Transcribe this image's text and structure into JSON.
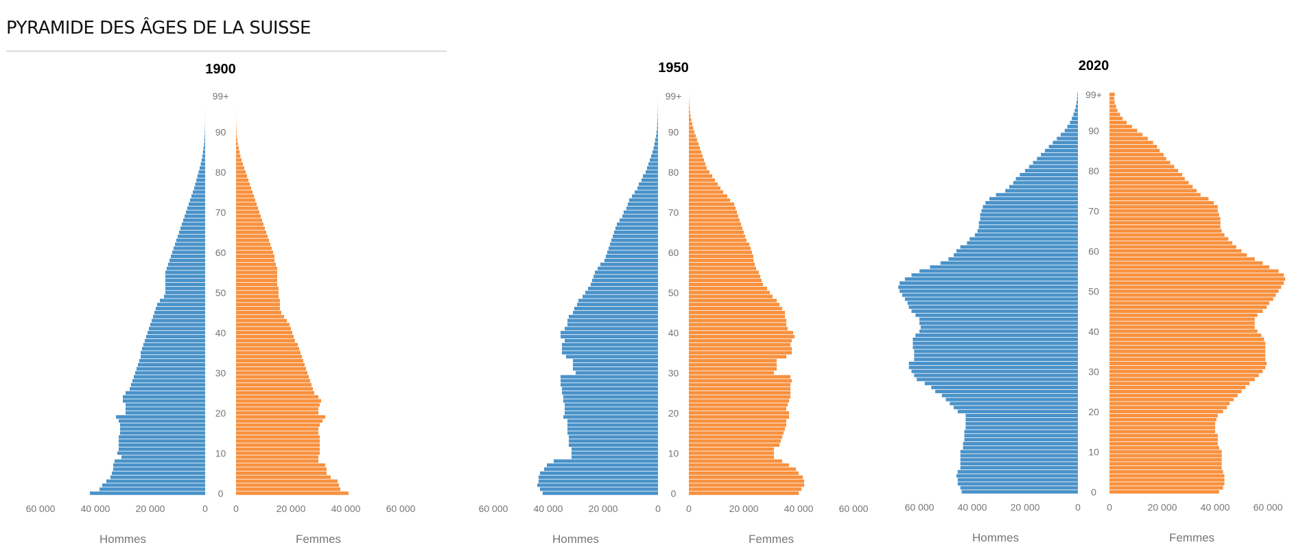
{
  "page": {
    "title": "PYRAMIDE DES ÂGES DE LA SUISSE"
  },
  "colors": {
    "hommes": "#4a92c9",
    "femmes": "#f8913f",
    "tick_text": "#757575",
    "title_text": "#000000"
  },
  "chart_data": [
    {
      "type": "bar",
      "orientation": "horizontal-population-pyramid",
      "title": "1900",
      "age_labels": [
        "0",
        "10",
        "20",
        "30",
        "40",
        "50",
        "60",
        "70",
        "80",
        "90",
        "99+"
      ],
      "x_tick_labels_left": [
        "60 000",
        "40 000",
        "20 000",
        "0"
      ],
      "x_tick_labels_right": [
        "0",
        "20 000",
        "40 000",
        "60 000"
      ],
      "xlim": [
        0,
        60000
      ],
      "xlabel_left": "Hommes",
      "xlabel_right": "Femmes",
      "series": [
        {
          "name": "Hommes",
          "values": [
            42000,
            38500,
            37500,
            36000,
            34500,
            34000,
            33500,
            33500,
            33000,
            30500,
            32000,
            31500,
            31500,
            31500,
            31500,
            31000,
            31000,
            31000,
            31500,
            32500,
            29000,
            29000,
            29000,
            30000,
            30000,
            29000,
            27500,
            27000,
            26500,
            26000,
            25500,
            25000,
            24500,
            24000,
            23500,
            23500,
            23000,
            22500,
            22000,
            21500,
            21000,
            20500,
            20000,
            19500,
            19000,
            18500,
            18000,
            17500,
            16500,
            15000,
            14500,
            14500,
            14500,
            14500,
            14500,
            14500,
            14000,
            13500,
            13000,
            12500,
            12000,
            11500,
            11000,
            10500,
            10000,
            9500,
            9000,
            8500,
            8000,
            7500,
            7000,
            6500,
            6000,
            5500,
            5000,
            4500,
            4000,
            3600,
            3200,
            2800,
            2400,
            2000,
            1600,
            1300,
            1000,
            800,
            600,
            400,
            300,
            200,
            130,
            80,
            50,
            30,
            20,
            10,
            5,
            3,
            2,
            1
          ]
        },
        {
          "name": "Femmes",
          "values": [
            41000,
            38000,
            37500,
            37000,
            34500,
            33000,
            33000,
            32500,
            30000,
            30000,
            30500,
            30500,
            30500,
            30500,
            30500,
            30000,
            30000,
            30500,
            31500,
            32500,
            30000,
            30000,
            30500,
            31000,
            30000,
            28500,
            28000,
            27500,
            27000,
            26500,
            26000,
            25500,
            25000,
            24500,
            24000,
            23500,
            23000,
            22500,
            21500,
            21000,
            20500,
            20000,
            19500,
            18500,
            17500,
            16500,
            16000,
            16000,
            16000,
            15500,
            15500,
            15500,
            15000,
            15000,
            15000,
            15000,
            15000,
            14500,
            14000,
            14000,
            13500,
            13000,
            12500,
            12000,
            11500,
            11000,
            10500,
            10000,
            9500,
            9000,
            8500,
            8000,
            7500,
            7000,
            6500,
            6000,
            5500,
            5000,
            4500,
            4000,
            3500,
            3000,
            2500,
            2000,
            1600,
            1300,
            1000,
            700,
            500,
            300,
            200,
            130,
            80,
            50,
            30,
            20,
            10,
            5,
            3,
            2
          ]
        }
      ]
    },
    {
      "type": "bar",
      "orientation": "horizontal-population-pyramid",
      "title": "1950",
      "age_labels": [
        "0",
        "10",
        "20",
        "30",
        "40",
        "50",
        "60",
        "70",
        "80",
        "90",
        "99+"
      ],
      "x_tick_labels_left": [
        "60 000",
        "40 000",
        "20 000",
        "0"
      ],
      "x_tick_labels_right": [
        "0",
        "20 000",
        "40 000",
        "60 000"
      ],
      "xlim": [
        0,
        60000
      ],
      "xlabel_left": "Hommes",
      "xlabel_right": "Femmes",
      "series": [
        {
          "name": "Hommes",
          "values": [
            42000,
            43000,
            44000,
            43500,
            43500,
            43000,
            41500,
            40500,
            38000,
            31500,
            31500,
            31500,
            32500,
            32500,
            32500,
            33000,
            33000,
            33000,
            33000,
            34500,
            34000,
            34000,
            34000,
            34500,
            34500,
            35000,
            35000,
            35500,
            35500,
            35500,
            30000,
            31000,
            31000,
            31000,
            33500,
            35000,
            35000,
            35000,
            34000,
            35500,
            35500,
            34000,
            33000,
            33000,
            32500,
            31000,
            30500,
            29500,
            29000,
            27500,
            26500,
            25500,
            24500,
            24000,
            23500,
            23000,
            22000,
            21000,
            19500,
            19000,
            18500,
            18000,
            17500,
            17000,
            16500,
            16000,
            15500,
            15000,
            14000,
            13000,
            12500,
            11500,
            11000,
            10500,
            9500,
            8500,
            7500,
            7000,
            6000,
            5500,
            4500,
            4000,
            3500,
            3000,
            2500,
            2000,
            1600,
            1300,
            1000,
            700,
            500,
            350,
            250,
            180,
            120,
            80,
            50,
            30,
            20,
            10
          ]
        },
        {
          "name": "Femmes",
          "values": [
            40000,
            41000,
            42000,
            42000,
            41500,
            40000,
            39000,
            36500,
            34000,
            31000,
            31000,
            31000,
            33000,
            33500,
            34000,
            34500,
            35000,
            35500,
            35500,
            36500,
            36500,
            35500,
            36000,
            36500,
            37000,
            37000,
            37000,
            37000,
            37500,
            37000,
            31000,
            32000,
            32000,
            32000,
            35500,
            37500,
            37500,
            37000,
            37500,
            38500,
            38000,
            36000,
            35500,
            35500,
            35000,
            35000,
            34000,
            33000,
            32000,
            30500,
            29500,
            28500,
            27000,
            26500,
            26000,
            25500,
            24500,
            24000,
            23500,
            23500,
            23000,
            22500,
            22000,
            21000,
            20500,
            20000,
            19500,
            19000,
            18500,
            18000,
            17500,
            17000,
            16500,
            15000,
            14000,
            12500,
            11500,
            10500,
            9500,
            8500,
            7500,
            6500,
            6000,
            5500,
            5000,
            4500,
            4000,
            3500,
            3000,
            2500,
            2000,
            1600,
            1200,
            900,
            600,
            400,
            250,
            150,
            80,
            40
          ]
        }
      ]
    },
    {
      "type": "bar",
      "orientation": "horizontal-population-pyramid",
      "title": "2020",
      "age_labels": [
        "0",
        "10",
        "20",
        "30",
        "40",
        "50",
        "60",
        "70",
        "80",
        "90",
        "99+"
      ],
      "x_tick_labels_left": [
        "60 000",
        "40 000",
        "20 000",
        "0"
      ],
      "x_tick_labels_right": [
        "0",
        "20 000",
        "40 000",
        "60 000"
      ],
      "xlim": [
        0,
        60000
      ],
      "xlabel_left": "Hommes",
      "xlabel_right": "Femmes",
      "series": [
        {
          "name": "Hommes",
          "values": [
            44000,
            44500,
            45500,
            45500,
            46000,
            45500,
            44500,
            44500,
            44500,
            44500,
            44500,
            43500,
            43500,
            43000,
            43000,
            43000,
            42500,
            42500,
            42500,
            42500,
            45500,
            47000,
            48500,
            50000,
            51500,
            54000,
            55500,
            58000,
            61000,
            62000,
            63000,
            64000,
            64000,
            62000,
            62000,
            62000,
            62500,
            62500,
            62500,
            61500,
            60000,
            59500,
            60000,
            60000,
            61500,
            63000,
            64000,
            64500,
            65500,
            66500,
            67500,
            68000,
            67500,
            65500,
            63000,
            60000,
            56000,
            52000,
            49000,
            47000,
            46000,
            44500,
            42000,
            41000,
            39000,
            38000,
            37500,
            37500,
            37000,
            37000,
            36500,
            36000,
            35000,
            33500,
            31000,
            27500,
            26000,
            24500,
            23500,
            22000,
            20000,
            18500,
            17000,
            15500,
            14000,
            12500,
            11000,
            9500,
            8000,
            6500,
            5000,
            4000,
            3000,
            2300,
            1700,
            1200,
            800,
            500,
            300,
            200
          ]
        },
        {
          "name": "Femmes",
          "values": [
            41500,
            43000,
            43500,
            43500,
            43500,
            43000,
            42500,
            42500,
            42500,
            42500,
            42500,
            41500,
            41000,
            41000,
            41000,
            40000,
            40000,
            40000,
            40500,
            41000,
            43000,
            44500,
            45500,
            47000,
            48500,
            50000,
            51500,
            53000,
            55000,
            56500,
            58000,
            59000,
            59500,
            59000,
            59000,
            59000,
            59000,
            59000,
            58500,
            57500,
            56000,
            55000,
            55000,
            55000,
            56000,
            58000,
            59500,
            60500,
            62000,
            63000,
            64000,
            65000,
            66000,
            66500,
            66000,
            64000,
            60500,
            58000,
            55000,
            52000,
            50000,
            48000,
            46500,
            45000,
            43500,
            42500,
            42000,
            42000,
            42000,
            41500,
            41000,
            41000,
            39500,
            37500,
            34500,
            33000,
            31500,
            30000,
            28500,
            27500,
            26000,
            24500,
            23000,
            21500,
            20500,
            19000,
            18000,
            16500,
            14500,
            12500,
            10500,
            8500,
            6500,
            5000,
            4000,
            3000,
            2500,
            2000,
            1800,
            2000
          ]
        }
      ]
    }
  ]
}
